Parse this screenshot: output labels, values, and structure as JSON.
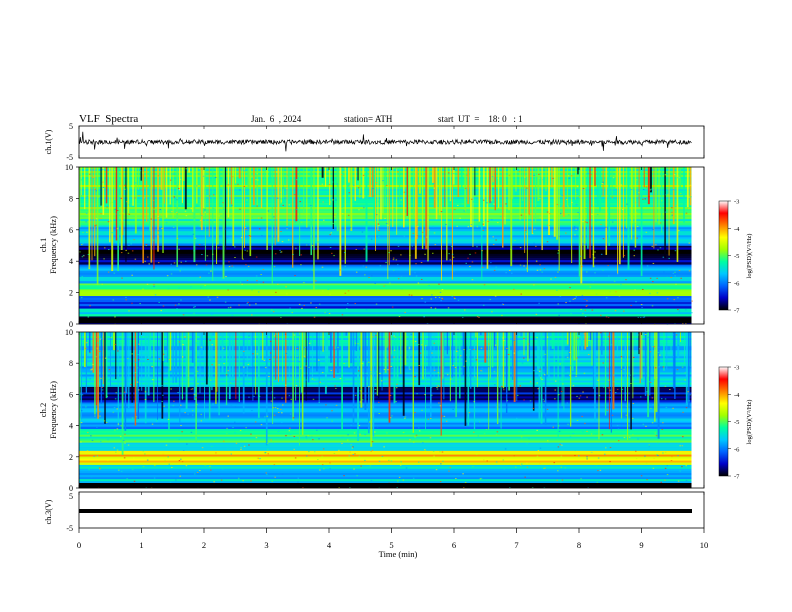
{
  "header": {
    "title": "VLF  Spectra",
    "date": "Jan.  6  , 2024",
    "station": "station= ATH",
    "start_ut": "start  UT  =    18: 0   : 1"
  },
  "panels": {
    "ch1_wave": {
      "ylabel": "ch.1(V)",
      "ticks": [
        "5",
        "-5"
      ]
    },
    "ch1_spec": {
      "ylabel_top": "ch.1",
      "ylabel": "Frequency  (kHz)",
      "ticks": [
        "10",
        "8",
        "6",
        "4",
        "2",
        "0"
      ]
    },
    "ch2_spec": {
      "ylabel_top": "ch.2",
      "ylabel": "Frequency  (kHz)",
      "ticks": [
        "10",
        "8",
        "6",
        "4",
        "2",
        "0"
      ]
    },
    "ch3_wave": {
      "ylabel": "ch.3(V)",
      "ticks": [
        "5",
        "-5"
      ]
    }
  },
  "colorbar": {
    "label": "log(PSD)(V²/Hz)",
    "ticks": [
      "-3",
      "-4",
      "-5",
      "-6",
      "-7"
    ],
    "stops": [
      "#000000",
      "#0000c8",
      "#0064ff",
      "#00c8ff",
      "#00ffa0",
      "#a0ff00",
      "#ffff00",
      "#ff8000",
      "#ff0000",
      "#ffffff"
    ]
  },
  "chart_data": {
    "type": "heatmap",
    "xlabel": "Time  (min)",
    "xlim": [
      0,
      10
    ],
    "x_ticks": [
      "0",
      "1",
      "2",
      "3",
      "4",
      "5",
      "6",
      "7",
      "8",
      "9",
      "10"
    ],
    "ylim_freq_khz": [
      0,
      10
    ],
    "ylim_wave_v": [
      -5,
      5
    ],
    "zlim_log_psd": [
      -7,
      -3
    ],
    "data_end_min": 9.8,
    "ch1_spectrum_bands": [
      {
        "f_khz": [
          0,
          0.5
        ],
        "log_psd": -7
      },
      {
        "f_khz": [
          0.5,
          1.0
        ],
        "log_psd": -5.5
      },
      {
        "f_khz": [
          1.0,
          1.8
        ],
        "log_psd": -6.3
      },
      {
        "f_khz": [
          1.8,
          2.6
        ],
        "log_psd": -5.0
      },
      {
        "f_khz": [
          2.6,
          3.8
        ],
        "log_psd": -5.8
      },
      {
        "f_khz": [
          3.8,
          5.0
        ],
        "log_psd": -6.8
      },
      {
        "f_khz": [
          5.0,
          6.3
        ],
        "log_psd": -5.7
      },
      {
        "f_khz": [
          6.3,
          10.0
        ],
        "log_psd": -5.1
      }
    ],
    "ch2_spectrum_bands": [
      {
        "f_khz": [
          0,
          0.3
        ],
        "log_psd": -7
      },
      {
        "f_khz": [
          0.3,
          1.5
        ],
        "log_psd": -5.6
      },
      {
        "f_khz": [
          1.5,
          2.4
        ],
        "log_psd": -4.2
      },
      {
        "f_khz": [
          2.4,
          3.8
        ],
        "log_psd": -5.3
      },
      {
        "f_khz": [
          3.8,
          5.5
        ],
        "log_psd": -5.8
      },
      {
        "f_khz": [
          5.5,
          6.5
        ],
        "log_psd": -6.6
      },
      {
        "f_khz": [
          6.5,
          10.0
        ],
        "log_psd": -5.6
      }
    ],
    "ch1_waveform_level_v": 0.0,
    "ch3_waveform_level_v": -1.5
  }
}
